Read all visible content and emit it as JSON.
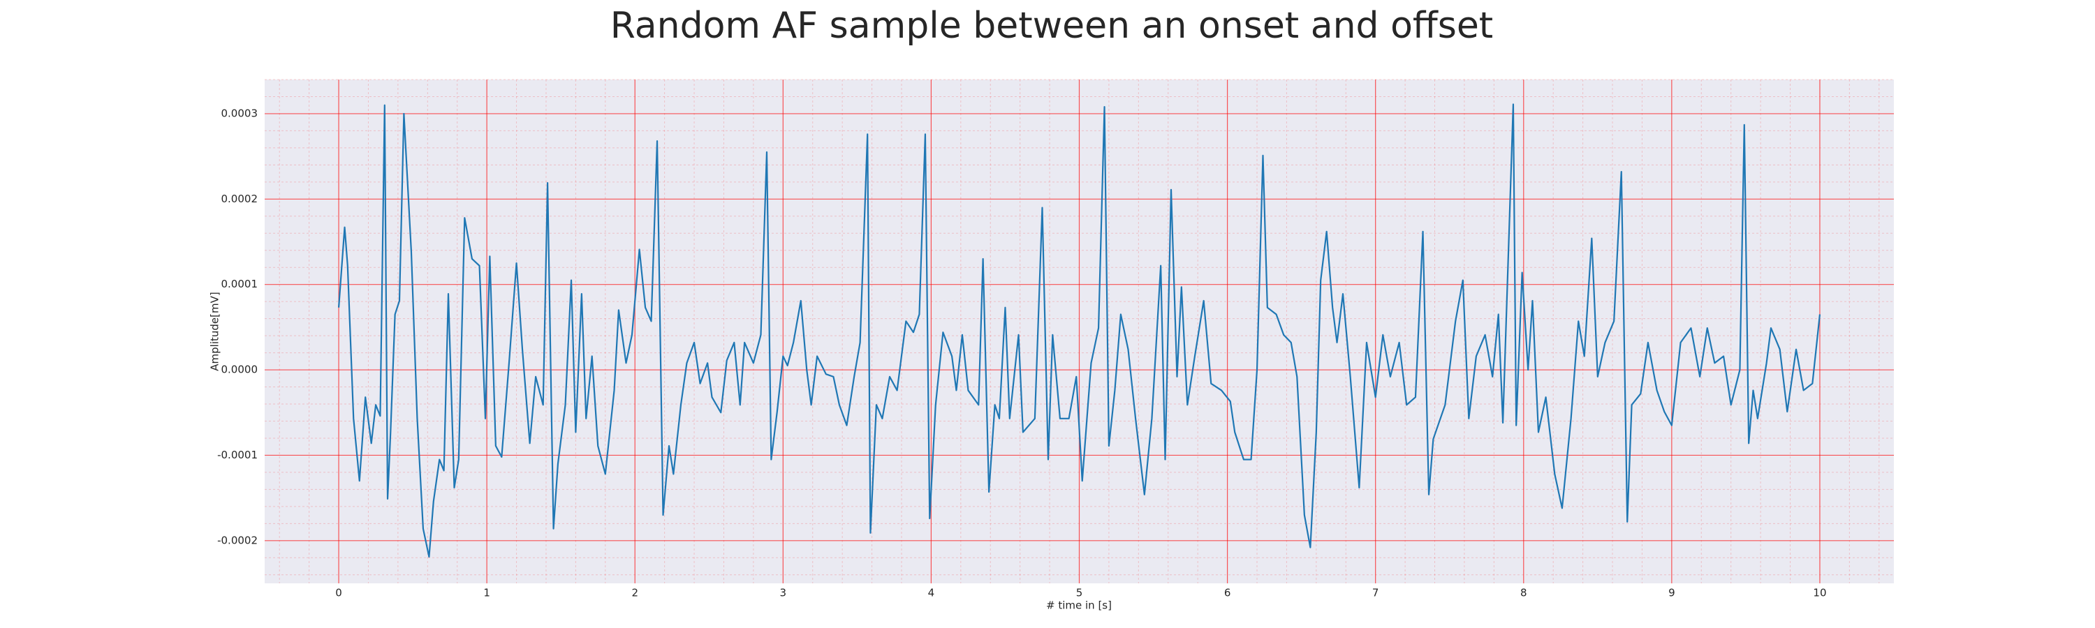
{
  "chart_data": {
    "type": "line",
    "title": "Random AF sample between an onset and offset",
    "x_label": "# time in [s]",
    "y_label": "Amplitude[mV]",
    "color": "#1f77b4",
    "background": "#eaeaf2",
    "grid": true,
    "grid_color": "#ff0000",
    "minor_grid": true,
    "xlim": [
      -0.5,
      10.5
    ],
    "ylim": [
      -0.00025,
      0.00034
    ],
    "xticks": [
      0,
      1,
      2,
      3,
      4,
      5,
      6,
      7,
      8,
      9,
      10
    ],
    "yticks": [
      -0.0002,
      -0.0001,
      {
        "value": 0,
        "label": "0.0000"
      },
      0.0001,
      0.0002,
      0.0003
    ],
    "x": [
      0,
      0.04,
      0.06,
      0.1,
      0.14,
      0.18,
      0.22,
      0.25,
      0.28,
      0.31,
      0.33,
      0.35,
      0.38,
      0.41,
      0.44,
      0.49,
      0.53,
      0.57,
      0.61,
      0.64,
      0.68,
      0.71,
      0.74,
      0.78,
      0.81,
      0.85,
      0.9,
      0.95,
      0.99,
      1.02,
      1.06,
      1.1,
      1.15,
      1.2,
      1.24,
      1.29,
      1.33,
      1.38,
      1.41,
      1.45,
      1.48,
      1.53,
      1.57,
      1.6,
      1.64,
      1.67,
      1.71,
      1.75,
      1.8,
      1.86,
      1.89,
      1.94,
      1.98,
      2.03,
      2.07,
      2.11,
      2.15,
      2.19,
      2.23,
      2.26,
      2.31,
      2.35,
      2.4,
      2.44,
      2.49,
      2.52,
      2.58,
      2.62,
      2.67,
      2.71,
      2.74,
      2.8,
      2.85,
      2.89,
      2.92,
      2.96,
      3.0,
      3.03,
      3.07,
      3.12,
      3.16,
      3.19,
      3.23,
      3.29,
      3.34,
      3.38,
      3.43,
      3.48,
      3.52,
      3.57,
      3.59,
      3.63,
      3.67,
      3.72,
      3.77,
      3.83,
      3.88,
      3.92,
      3.96,
      3.99,
      4.03,
      4.08,
      4.14,
      4.17,
      4.21,
      4.25,
      4.32,
      4.35,
      4.39,
      4.43,
      4.46,
      4.5,
      4.53,
      4.59,
      4.62,
      4.7,
      4.75,
      4.79,
      4.82,
      4.87,
      4.93,
      4.98,
      5.02,
      5.08,
      5.13,
      5.17,
      5.2,
      5.24,
      5.28,
      5.33,
      5.38,
      5.44,
      5.49,
      5.55,
      5.58,
      5.62,
      5.66,
      5.69,
      5.73,
      5.78,
      5.84,
      5.89,
      5.96,
      6.02,
      6.05,
      6.11,
      6.16,
      6.2,
      6.24,
      6.27,
      6.33,
      6.38,
      6.43,
      6.47,
      6.52,
      6.56,
      6.6,
      6.63,
      6.67,
      6.71,
      6.74,
      6.78,
      6.83,
      6.89,
      6.94,
      7.0,
      7.05,
      7.1,
      7.16,
      7.21,
      7.27,
      7.32,
      7.36,
      7.39,
      7.47,
      7.54,
      7.59,
      7.63,
      7.68,
      7.74,
      7.79,
      7.83,
      7.86,
      7.93,
      7.95,
      7.99,
      8.03,
      8.06,
      8.1,
      8.15,
      8.21,
      8.26,
      8.32,
      8.37,
      8.41,
      8.46,
      8.5,
      8.55,
      8.61,
      8.66,
      8.7,
      8.73,
      8.79,
      8.84,
      8.9,
      8.95,
      9.0,
      9.06,
      9.13,
      9.19,
      9.24,
      9.29,
      9.35,
      9.4,
      9.46,
      9.49,
      9.52,
      9.55,
      9.58,
      9.64,
      9.67,
      9.73,
      9.78,
      9.84,
      9.89,
      9.95,
      10.0
    ],
    "values": [
      7.3e-05,
      0.000167,
      0.000122,
      -5.7e-05,
      -0.00013,
      -3.2e-05,
      -8.6e-05,
      -4.1e-05,
      -5.4e-05,
      0.00031,
      -0.000151,
      -7.3e-05,
      6.5e-05,
      8.1e-05,
      0.0003,
      0.000138,
      -5.7e-05,
      -0.000186,
      -0.000219,
      -0.000154,
      -0.000105,
      -0.000118,
      8.9e-05,
      -0.000138,
      -0.000105,
      0.000178,
      0.00013,
      0.000122,
      -5.7e-05,
      0.000133,
      -8.9e-05,
      -0.000102,
      8e-06,
      0.000125,
      2.4e-05,
      -8.6e-05,
      -8e-06,
      -4.1e-05,
      0.000219,
      -0.000186,
      -0.00011,
      -4.1e-05,
      0.000105,
      -7.3e-05,
      8.9e-05,
      -5.7e-05,
      1.6e-05,
      -8.9e-05,
      -0.000122,
      -2.4e-05,
      7e-05,
      8e-06,
      4.1e-05,
      0.000141,
      7.3e-05,
      5.7e-05,
      0.000268,
      -0.00017,
      -8.9e-05,
      -0.000122,
      -4.1e-05,
      8e-06,
      3.2e-05,
      -1.6e-05,
      8e-06,
      -3.2e-05,
      -5e-05,
      1.1e-05,
      3.2e-05,
      -4.1e-05,
      3.2e-05,
      8e-06,
      4.1e-05,
      0.000255,
      -0.000105,
      -4.9e-05,
      1.6e-05,
      5e-06,
      3.2e-05,
      8.1e-05,
      0,
      -4.1e-05,
      1.6e-05,
      -5e-06,
      -8e-06,
      -4.1e-05,
      -6.5e-05,
      -8e-06,
      3.2e-05,
      0.000276,
      -0.000191,
      -4.1e-05,
      -5.7e-05,
      -8e-06,
      -2.4e-05,
      5.7e-05,
      4.4e-05,
      6.5e-05,
      0.000276,
      -0.000174,
      -4.1e-05,
      4.4e-05,
      1.6e-05,
      -2.4e-05,
      4.1e-05,
      -2.4e-05,
      -4.1e-05,
      0.00013,
      -0.000143,
      -4.1e-05,
      -5.7e-05,
      7.3e-05,
      -5.7e-05,
      4.1e-05,
      -7.3e-05,
      -5.7e-05,
      0.00019,
      -0.000105,
      4.1e-05,
      -5.7e-05,
      -5.7e-05,
      -8e-06,
      -0.00013,
      8e-06,
      4.9e-05,
      0.000308,
      -8.9e-05,
      -2.4e-05,
      6.5e-05,
      2.4e-05,
      -5.7e-05,
      -0.000146,
      -5.7e-05,
      0.000122,
      -0.000105,
      0.000211,
      -8e-06,
      9.7e-05,
      -4.1e-05,
      1.6e-05,
      8.1e-05,
      -1.6e-05,
      -2.4e-05,
      -3.7e-05,
      -7.3e-05,
      -0.000105,
      -0.000105,
      0,
      0.000251,
      7.3e-05,
      6.5e-05,
      4.1e-05,
      3.2e-05,
      -8e-06,
      -0.00017,
      -0.000208,
      -7.3e-05,
      0.000105,
      0.000162,
      7.3e-05,
      3.2e-05,
      8.9e-05,
      -8e-06,
      -0.000138,
      3.2e-05,
      -3.2e-05,
      4.1e-05,
      -8e-06,
      3.2e-05,
      -4.1e-05,
      -3.2e-05,
      0.000162,
      -0.000146,
      -8.1e-05,
      -4.1e-05,
      5.7e-05,
      0.000105,
      -5.7e-05,
      1.6e-05,
      4.1e-05,
      -8e-06,
      6.5e-05,
      -6.2e-05,
      0.000311,
      -6.5e-05,
      0.000114,
      0,
      8.1e-05,
      -7.3e-05,
      -3.2e-05,
      -0.000122,
      -0.000162,
      -5.7e-05,
      5.7e-05,
      1.6e-05,
      0.000154,
      -8e-06,
      3.2e-05,
      5.7e-05,
      0.000232,
      -0.000178,
      -4.1e-05,
      -2.8e-05,
      3.2e-05,
      -2.4e-05,
      -4.9e-05,
      -6.5e-05,
      3.2e-05,
      4.9e-05,
      -8e-06,
      4.9e-05,
      8e-06,
      1.6e-05,
      -4.1e-05,
      0,
      0.000287,
      -8.6e-05,
      -2.4e-05,
      -5.7e-05,
      8e-06,
      4.9e-05,
      2.4e-05,
      -4.9e-05,
      2.4e-05,
      -2.4e-05,
      -1.6e-05,
      6.5e-05
    ]
  }
}
